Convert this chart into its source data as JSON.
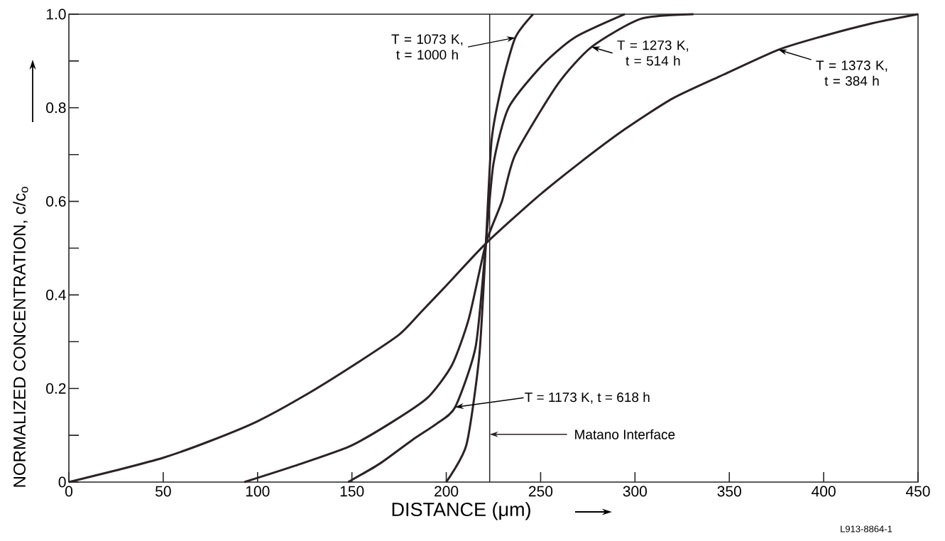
{
  "chart_data": {
    "type": "line",
    "xlabel": "DISTANCE (μm)",
    "ylabel": "NORMALIZED CONCENTRATION, c/c$_{o}$",
    "xlim": [
      0,
      450
    ],
    "ylim": [
      0,
      1.0
    ],
    "xticks": [
      0,
      50,
      100,
      150,
      200,
      250,
      300,
      350,
      400,
      450
    ],
    "yticks": [
      0,
      {
        "value": 0.1,
        "label": null
      },
      0.2,
      {
        "value": 0.3,
        "label": null
      },
      0.4,
      {
        "value": 0.5,
        "label": null
      },
      0.6,
      {
        "value": 0.7,
        "label": null
      },
      0.8,
      {
        "value": 0.9,
        "label": null
      },
      {
        "value": 1.0,
        "label": "1.0"
      }
    ],
    "grid": false,
    "marker": "none",
    "line_style": "solid",
    "series": [
      {
        "color": "#2b2326",
        "x": [
          200,
          210.7,
          217.5,
          221,
          224,
          229.5,
          236.6,
          246
        ],
        "values": [
          0,
          0.08,
          0.27,
          0.51,
          0.73,
          0.85,
          0.95,
          1.0
        ]
      },
      {
        "color": "#2b2326",
        "x": [
          148,
          165,
          182,
          195,
          204.7,
          215.6,
          221,
          225,
          233,
          250.6,
          268,
          294.6
        ],
        "values": [
          0,
          0.04,
          0.09,
          0.125,
          0.16,
          0.29,
          0.51,
          0.68,
          0.8,
          0.89,
          0.95,
          1.0
        ]
      },
      {
        "color": "#2b2326",
        "x": [
          93,
          120,
          148.6,
          170,
          190,
          203,
          212,
          221,
          229.5,
          236.6,
          259,
          277,
          303,
          331
        ],
        "values": [
          0,
          0.035,
          0.076,
          0.125,
          0.18,
          0.25,
          0.35,
          0.51,
          0.6,
          0.7,
          0.85,
          0.93,
          0.99,
          1.0
        ]
      },
      {
        "color": "#2b2326",
        "x": [
          0,
          25,
          50,
          75,
          100,
          125,
          151,
          175,
          187,
          200,
          221,
          247,
          270,
          294.6,
          320,
          347,
          376,
          399.5,
          425,
          450
        ],
        "values": [
          0,
          0.025,
          0.052,
          0.088,
          0.13,
          0.185,
          0.25,
          0.315,
          0.365,
          0.42,
          0.51,
          0.605,
          0.68,
          0.754,
          0.82,
          0.871,
          0.924,
          0.953,
          0.98,
          1.0
        ]
      }
    ],
    "ref_lines": [
      {
        "axis": "x",
        "value": 223,
        "label": "Matano Interface",
        "color": "#2b2326"
      }
    ],
    "annotations": [
      {
        "text": "T = 1073 K, t = 1000 h",
        "x": 236.6,
        "y": 0.95
      },
      {
        "text": "T = 1173 K,  t = 618 h",
        "x": 204.7,
        "y": 0.16
      },
      {
        "text": "T = 1273 K, t = 514 h",
        "x": 277,
        "y": 0.93
      },
      {
        "text": "T = 1373 K, t = 384 h",
        "x": 376,
        "y": 0.924
      },
      "L913-8864-1"
    ]
  }
}
